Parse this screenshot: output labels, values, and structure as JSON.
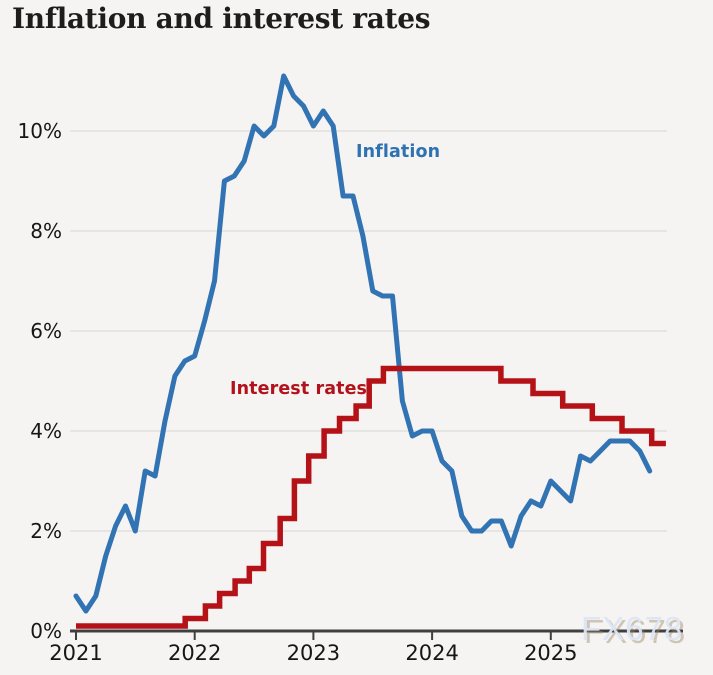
{
  "title": "Inflation and interest rates",
  "watermark": {
    "text": "FX678"
  },
  "chart_data": {
    "type": "line",
    "title": "Inflation and interest rates",
    "grid": "horizontal",
    "grid_color": "#dcdcdc",
    "axis_color": "#3f3f3f",
    "background_color": "#f5f4f2",
    "y_axis": {
      "unit": "%",
      "range": [
        0,
        12
      ],
      "ticks": [
        {
          "value": 0,
          "label": "0%"
        },
        {
          "value": 2,
          "label": "2%"
        },
        {
          "value": 4,
          "label": "4%"
        },
        {
          "value": 6,
          "label": "6%"
        },
        {
          "value": 8,
          "label": "8%"
        },
        {
          "value": 10,
          "label": "10%"
        }
      ]
    },
    "x_axis": {
      "range": [
        2021,
        2026
      ],
      "ticks": [
        {
          "value": 2021,
          "label": "2021"
        },
        {
          "value": 2022,
          "label": "2022"
        },
        {
          "value": 2023,
          "label": "2023"
        },
        {
          "value": 2024,
          "label": "2024"
        },
        {
          "value": 2025,
          "label": "2025"
        }
      ]
    },
    "series": [
      {
        "name": "Inflation",
        "color": "#3273b4",
        "style": "line",
        "frequency": "monthly",
        "start_month": "2021-01",
        "end_month": "2025-11",
        "values": [
          0.7,
          0.4,
          0.7,
          1.5,
          2.1,
          2.5,
          2.0,
          3.2,
          3.1,
          4.2,
          5.1,
          5.4,
          5.5,
          6.2,
          7.0,
          9.0,
          9.1,
          9.4,
          10.1,
          9.9,
          10.1,
          11.1,
          10.7,
          10.5,
          10.1,
          10.4,
          10.1,
          8.7,
          8.7,
          7.9,
          6.8,
          6.7,
          6.7,
          4.6,
          3.9,
          4.0,
          4.0,
          3.4,
          3.2,
          2.3,
          2.0,
          2.0,
          2.2,
          2.2,
          1.7,
          2.3,
          2.6,
          2.5,
          3.0,
          2.8,
          2.6,
          3.5,
          3.4,
          3.6,
          3.8,
          3.8,
          3.8,
          3.6,
          3.2
        ]
      },
      {
        "name": "Interest rates",
        "color": "#b51217",
        "style": "step",
        "end_t": 2025.97,
        "steps": [
          {
            "t": 2021.0,
            "rate": 0.1
          },
          {
            "t": 2021.92,
            "rate": 0.25
          },
          {
            "t": 2022.09,
            "rate": 0.5
          },
          {
            "t": 2022.21,
            "rate": 0.75
          },
          {
            "t": 2022.34,
            "rate": 1.0
          },
          {
            "t": 2022.46,
            "rate": 1.25
          },
          {
            "t": 2022.58,
            "rate": 1.75
          },
          {
            "t": 2022.72,
            "rate": 2.25
          },
          {
            "t": 2022.84,
            "rate": 3.0
          },
          {
            "t": 2022.96,
            "rate": 3.5
          },
          {
            "t": 2023.09,
            "rate": 4.0
          },
          {
            "t": 2023.22,
            "rate": 4.25
          },
          {
            "t": 2023.36,
            "rate": 4.5
          },
          {
            "t": 2023.47,
            "rate": 5.0
          },
          {
            "t": 2023.59,
            "rate": 5.25
          },
          {
            "t": 2024.58,
            "rate": 5.0
          },
          {
            "t": 2024.85,
            "rate": 4.75
          },
          {
            "t": 2025.1,
            "rate": 4.5
          },
          {
            "t": 2025.35,
            "rate": 4.25
          },
          {
            "t": 2025.6,
            "rate": 4.0
          },
          {
            "t": 2025.85,
            "rate": 3.75
          }
        ]
      }
    ]
  }
}
